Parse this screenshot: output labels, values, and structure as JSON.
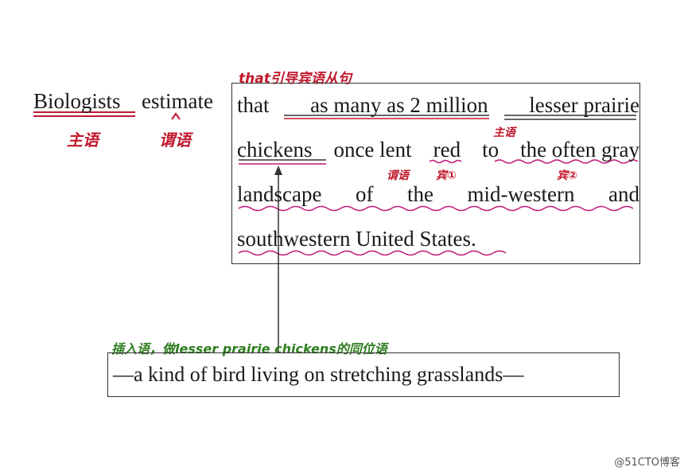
{
  "subject": {
    "text_1": "Biologists",
    "label": "主语"
  },
  "predicate": {
    "text": "estimate",
    "label": "谓语"
  },
  "clause_note": "that引导宾语从句",
  "clause_lines": [
    [
      "that",
      "as many as 2 million",
      "lesser prairie"
    ],
    [
      "chickens",
      "once lent",
      "red",
      "to",
      "the often gray"
    ],
    [
      "landscape",
      "of",
      "the",
      "mid-western",
      "and"
    ],
    [
      "southwestern United States."
    ]
  ],
  "clause_subject_label": "主语",
  "clause_predicate_label": "谓语",
  "object1_label": "宾①",
  "object2_label": "宾②",
  "appositive_note": "插入语，做lesser prairie chickens的同位语",
  "appositive_text": "—a kind of bird living on stretching grasslands—",
  "colors": {
    "red_ink": "#c0182c",
    "green_ink": "#2e7d1f",
    "pink_ink": "#c2187a"
  },
  "watermark": "@51CTO博客"
}
